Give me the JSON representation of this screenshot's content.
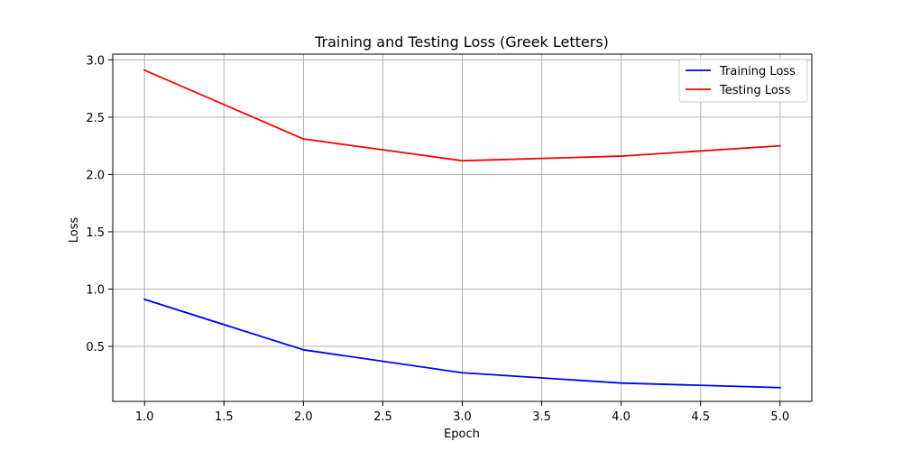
{
  "chart_data": {
    "type": "line",
    "title": "Training and Testing Loss (Greek Letters)",
    "xlabel": "Epoch",
    "ylabel": "Loss",
    "x": [
      1,
      2,
      3,
      4,
      5
    ],
    "xlim": [
      0.8,
      5.2
    ],
    "ylim": [
      0.02,
      3.05
    ],
    "xticks": [
      1.0,
      1.5,
      2.0,
      2.5,
      3.0,
      3.5,
      4.0,
      4.5,
      5.0
    ],
    "xtick_labels": [
      "1.0",
      "1.5",
      "2.0",
      "2.5",
      "3.0",
      "3.5",
      "4.0",
      "4.5",
      "5.0"
    ],
    "yticks": [
      0.5,
      1.0,
      1.5,
      2.0,
      2.5,
      3.0
    ],
    "ytick_labels": [
      "0.5",
      "1.0",
      "1.5",
      "2.0",
      "2.5",
      "3.0"
    ],
    "grid": true,
    "legend_position": "top-right",
    "series": [
      {
        "name": "Training Loss",
        "color": "#0000ff",
        "values": [
          0.91,
          0.47,
          0.27,
          0.18,
          0.14
        ]
      },
      {
        "name": "Testing Loss",
        "color": "#ff0000",
        "values": [
          2.91,
          2.31,
          2.12,
          2.16,
          2.25
        ]
      }
    ]
  }
}
